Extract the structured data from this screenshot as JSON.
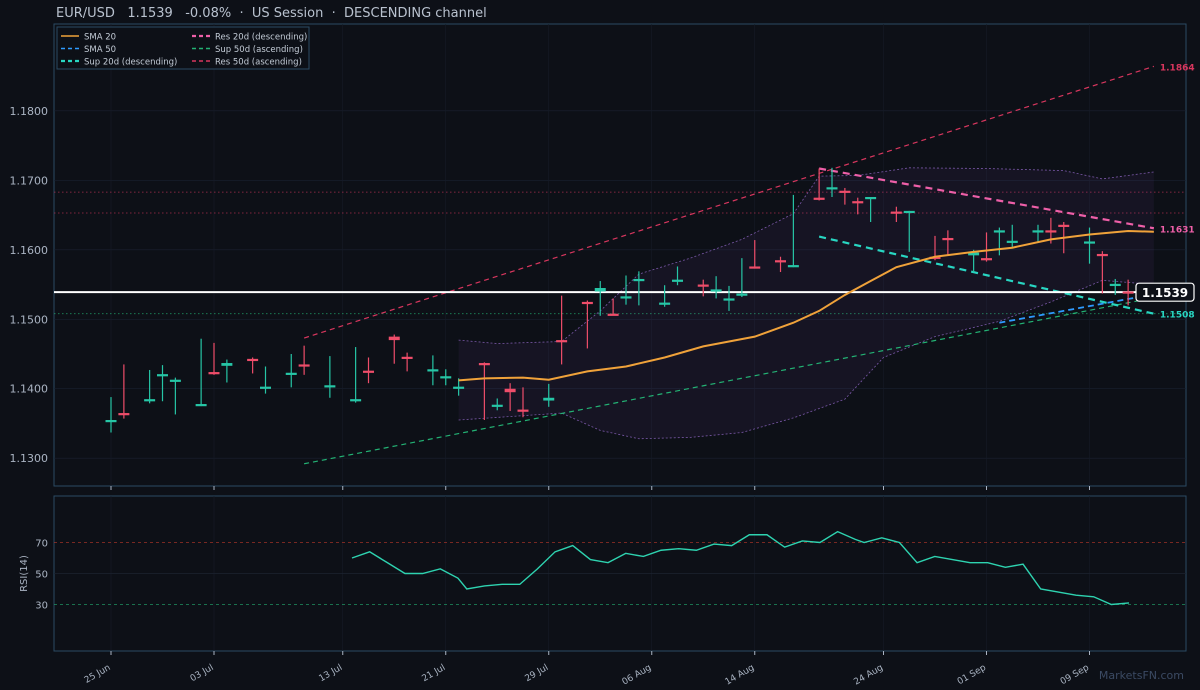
{
  "header": {
    "title": "EUR/USD   1.1539   -0.08%  ·  US Session  ·  DESCENDING channel"
  },
  "watermark": "MarketsFN.com",
  "colors": {
    "up": "#26c6a6",
    "down": "#ef4d6a",
    "sma20": "#f0a23a",
    "sma50": "#2e9bff",
    "res20": "#ee5fa8",
    "sup20": "#28d6c2",
    "res50": "#d8365e",
    "sup50": "#23b274",
    "price_line": "#ffffff",
    "rsi": "#2ed3b0",
    "bg": "#0d1017",
    "frame": "#2a4a63"
  },
  "chart_data": [
    {
      "type": "candlestick",
      "name": "price",
      "ylim": [
        1.126,
        1.1925
      ],
      "yticks": [
        1.13,
        1.14,
        1.15,
        1.16,
        1.17,
        1.18
      ],
      "ytick_labels": [
        "1.1300",
        "1.1400",
        "1.1500",
        "1.1600",
        "1.1700",
        "1.1800"
      ],
      "xticks": [
        {
          "date": "2025-06-25",
          "label": "25 Jun"
        },
        {
          "date": "2025-07-03",
          "label": "03 Jul"
        },
        {
          "date": "2025-07-13",
          "label": "13 Jul"
        },
        {
          "date": "2025-07-21",
          "label": "21 Jul"
        },
        {
          "date": "2025-07-29",
          "label": "29 Jul"
        },
        {
          "date": "2025-08-06",
          "label": "06 Aug"
        },
        {
          "date": "2025-08-14",
          "label": "14 Aug"
        },
        {
          "date": "2025-08-24",
          "label": "24 Aug"
        },
        {
          "date": "2025-09-01",
          "label": "01 Sep"
        },
        {
          "date": "2025-09-09",
          "label": "09 Sep"
        }
      ],
      "candles": [
        {
          "date": "2025-06-25",
          "o": 1.1352,
          "h": 1.1388,
          "l": 1.1337,
          "c": 1.1355
        },
        {
          "date": "2025-06-26",
          "o": 1.1365,
          "h": 1.1435,
          "l": 1.1357,
          "c": 1.1362
        },
        {
          "date": "2025-06-28",
          "o": 1.1383,
          "h": 1.1427,
          "l": 1.1379,
          "c": 1.1385
        },
        {
          "date": "2025-06-29",
          "o": 1.1418,
          "h": 1.1434,
          "l": 1.1382,
          "c": 1.1421
        },
        {
          "date": "2025-06-30",
          "o": 1.141,
          "h": 1.1416,
          "l": 1.1363,
          "c": 1.1413
        },
        {
          "date": "2025-07-02",
          "o": 1.1376,
          "h": 1.1472,
          "l": 1.1375,
          "c": 1.1378
        },
        {
          "date": "2025-07-03",
          "o": 1.1424,
          "h": 1.1466,
          "l": 1.142,
          "c": 1.1422
        },
        {
          "date": "2025-07-04",
          "o": 1.1433,
          "h": 1.1442,
          "l": 1.1409,
          "c": 1.1437
        },
        {
          "date": "2025-07-06",
          "o": 1.1443,
          "h": 1.1445,
          "l": 1.1422,
          "c": 1.144
        },
        {
          "date": "2025-07-07",
          "o": 1.14,
          "h": 1.1432,
          "l": 1.1393,
          "c": 1.1403
        },
        {
          "date": "2025-07-09",
          "o": 1.142,
          "h": 1.145,
          "l": 1.1402,
          "c": 1.1423
        },
        {
          "date": "2025-07-10",
          "o": 1.1435,
          "h": 1.1462,
          "l": 1.142,
          "c": 1.1432
        },
        {
          "date": "2025-07-12",
          "o": 1.1402,
          "h": 1.1447,
          "l": 1.1387,
          "c": 1.1405
        },
        {
          "date": "2025-07-14",
          "o": 1.1382,
          "h": 1.146,
          "l": 1.138,
          "c": 1.1385
        },
        {
          "date": "2025-07-15",
          "o": 1.1426,
          "h": 1.1445,
          "l": 1.1408,
          "c": 1.1423
        },
        {
          "date": "2025-07-17",
          "o": 1.1475,
          "h": 1.1478,
          "l": 1.1436,
          "c": 1.147
        },
        {
          "date": "2025-07-18",
          "o": 1.1446,
          "h": 1.1452,
          "l": 1.1425,
          "c": 1.1444
        },
        {
          "date": "2025-07-20",
          "o": 1.1425,
          "h": 1.1448,
          "l": 1.1405,
          "c": 1.1428
        },
        {
          "date": "2025-07-21",
          "o": 1.1415,
          "h": 1.1428,
          "l": 1.1405,
          "c": 1.1418
        },
        {
          "date": "2025-07-22",
          "o": 1.14,
          "h": 1.1415,
          "l": 1.139,
          "c": 1.1403
        },
        {
          "date": "2025-07-24",
          "o": 1.1437,
          "h": 1.1438,
          "l": 1.1355,
          "c": 1.1436
        },
        {
          "date": "2025-07-25",
          "o": 1.1375,
          "h": 1.1386,
          "l": 1.1369,
          "c": 1.1377
        },
        {
          "date": "2025-07-26",
          "o": 1.14,
          "h": 1.1408,
          "l": 1.1368,
          "c": 1.1395
        },
        {
          "date": "2025-07-27",
          "o": 1.137,
          "h": 1.1402,
          "l": 1.1359,
          "c": 1.1368
        },
        {
          "date": "2025-07-29",
          "o": 1.1383,
          "h": 1.1407,
          "l": 1.1374,
          "c": 1.1387
        },
        {
          "date": "2025-07-30",
          "o": 1.147,
          "h": 1.1534,
          "l": 1.1435,
          "c": 1.1468
        },
        {
          "date": "2025-08-01",
          "o": 1.1525,
          "h": 1.1527,
          "l": 1.1458,
          "c": 1.1523
        },
        {
          "date": "2025-08-02",
          "o": 1.154,
          "h": 1.1555,
          "l": 1.1505,
          "c": 1.1545
        },
        {
          "date": "2025-08-03",
          "o": 1.1508,
          "h": 1.153,
          "l": 1.1506,
          "c": 1.1506
        },
        {
          "date": "2025-08-04",
          "o": 1.153,
          "h": 1.1563,
          "l": 1.1521,
          "c": 1.1533
        },
        {
          "date": "2025-08-05",
          "o": 1.1556,
          "h": 1.1569,
          "l": 1.152,
          "c": 1.1558
        },
        {
          "date": "2025-08-07",
          "o": 1.1521,
          "h": 1.1549,
          "l": 1.1518,
          "c": 1.1524
        },
        {
          "date": "2025-08-08",
          "o": 1.1555,
          "h": 1.1576,
          "l": 1.1549,
          "c": 1.1557
        },
        {
          "date": "2025-08-10",
          "o": 1.155,
          "h": 1.1557,
          "l": 1.1533,
          "c": 1.1547
        },
        {
          "date": "2025-08-11",
          "o": 1.154,
          "h": 1.1562,
          "l": 1.153,
          "c": 1.1543
        },
        {
          "date": "2025-08-12",
          "o": 1.1527,
          "h": 1.1548,
          "l": 1.1512,
          "c": 1.153
        },
        {
          "date": "2025-08-13",
          "o": 1.1535,
          "h": 1.1588,
          "l": 1.1532,
          "c": 1.1537
        },
        {
          "date": "2025-08-14",
          "o": 1.1576,
          "h": 1.1614,
          "l": 1.1573,
          "c": 1.1574
        },
        {
          "date": "2025-08-16",
          "o": 1.1585,
          "h": 1.159,
          "l": 1.1568,
          "c": 1.1583
        },
        {
          "date": "2025-08-17",
          "o": 1.1575,
          "h": 1.1679,
          "l": 1.1575,
          "c": 1.1578
        },
        {
          "date": "2025-08-19",
          "o": 1.1675,
          "h": 1.1717,
          "l": 1.1671,
          "c": 1.1673
        },
        {
          "date": "2025-08-20",
          "o": 1.1688,
          "h": 1.1718,
          "l": 1.1676,
          "c": 1.169
        },
        {
          "date": "2025-08-21",
          "o": 1.1685,
          "h": 1.1689,
          "l": 1.1665,
          "c": 1.1682
        },
        {
          "date": "2025-08-22",
          "o": 1.167,
          "h": 1.1675,
          "l": 1.1651,
          "c": 1.1667
        },
        {
          "date": "2025-08-23",
          "o": 1.1674,
          "h": 1.1676,
          "l": 1.164,
          "c": 1.1676
        },
        {
          "date": "2025-08-25",
          "o": 1.1655,
          "h": 1.1662,
          "l": 1.164,
          "c": 1.1652
        },
        {
          "date": "2025-08-26",
          "o": 1.1655,
          "h": 1.1656,
          "l": 1.1597,
          "c": 1.1656
        },
        {
          "date": "2025-08-28",
          "o": 1.159,
          "h": 1.162,
          "l": 1.1585,
          "c": 1.1588
        },
        {
          "date": "2025-08-29",
          "o": 1.1617,
          "h": 1.1628,
          "l": 1.1592,
          "c": 1.1615
        },
        {
          "date": "2025-08-31",
          "o": 1.1592,
          "h": 1.16,
          "l": 1.1568,
          "c": 1.1596
        },
        {
          "date": "2025-09-01",
          "o": 1.1588,
          "h": 1.1625,
          "l": 1.1583,
          "c": 1.1586
        },
        {
          "date": "2025-09-02",
          "o": 1.1627,
          "h": 1.1632,
          "l": 1.1592,
          "c": 1.1628
        },
        {
          "date": "2025-09-03",
          "o": 1.1612,
          "h": 1.1636,
          "l": 1.1602,
          "c": 1.1613
        },
        {
          "date": "2025-09-05",
          "o": 1.1625,
          "h": 1.1636,
          "l": 1.161,
          "c": 1.1628
        },
        {
          "date": "2025-09-06",
          "o": 1.1628,
          "h": 1.1646,
          "l": 1.1609,
          "c": 1.1626
        },
        {
          "date": "2025-09-07",
          "o": 1.1636,
          "h": 1.164,
          "l": 1.1595,
          "c": 1.1634
        },
        {
          "date": "2025-09-09",
          "o": 1.161,
          "h": 1.1632,
          "l": 1.158,
          "c": 1.1612
        },
        {
          "date": "2025-09-10",
          "o": 1.1594,
          "h": 1.1598,
          "l": 1.1537,
          "c": 1.1593
        },
        {
          "date": "2025-09-11",
          "o": 1.1548,
          "h": 1.1558,
          "l": 1.1535,
          "c": 1.1551
        },
        {
          "date": "2025-09-12",
          "o": 1.154,
          "h": 1.1557,
          "l": 1.152,
          "c": 1.1539
        }
      ],
      "overlays": {
        "sma20": [
          [
            "2025-07-22",
            1.1412
          ],
          [
            "2025-07-24",
            1.1415
          ],
          [
            "2025-07-27",
            1.1416
          ],
          [
            "2025-07-29",
            1.1413
          ],
          [
            "2025-08-01",
            1.1425
          ],
          [
            "2025-08-04",
            1.1432
          ],
          [
            "2025-08-07",
            1.1445
          ],
          [
            "2025-08-10",
            1.1461
          ],
          [
            "2025-08-12",
            1.1468
          ],
          [
            "2025-08-14",
            1.1475
          ],
          [
            "2025-08-17",
            1.1495
          ],
          [
            "2025-08-19",
            1.1512
          ],
          [
            "2025-08-21",
            1.1535
          ],
          [
            "2025-08-23",
            1.1555
          ],
          [
            "2025-08-25",
            1.1575
          ],
          [
            "2025-08-28",
            1.159
          ],
          [
            "2025-08-31",
            1.1597
          ],
          [
            "2025-09-03",
            1.1603
          ],
          [
            "2025-09-06",
            1.1615
          ],
          [
            "2025-09-09",
            1.1622
          ],
          [
            "2025-09-12",
            1.1627
          ],
          [
            "2025-09-14",
            1.1626
          ]
        ],
        "sma50": [
          [
            "2025-09-02",
            1.1495
          ],
          [
            "2025-09-14",
            1.1536
          ]
        ],
        "res20": [
          [
            "2025-08-19",
            1.1717
          ],
          [
            "2025-09-14",
            1.1631
          ]
        ],
        "sup20": [
          [
            "2025-08-19",
            1.1619
          ],
          [
            "2025-09-14",
            1.1508
          ]
        ],
        "sup50": [
          [
            "2025-07-10",
            1.1292
          ],
          [
            "2025-09-14",
            1.1531
          ]
        ],
        "res50": [
          [
            "2025-07-10",
            1.1473
          ],
          [
            "2025-09-14",
            1.1864
          ]
        ],
        "bb_upper": [
          [
            "2025-07-22",
            1.147
          ],
          [
            "2025-07-25",
            1.1465
          ],
          [
            "2025-07-30",
            1.1468
          ],
          [
            "2025-08-02",
            1.1512
          ],
          [
            "2025-08-05",
            1.1565
          ],
          [
            "2025-08-09",
            1.1588
          ],
          [
            "2025-08-13",
            1.1615
          ],
          [
            "2025-08-17",
            1.1652
          ],
          [
            "2025-08-19",
            1.1706
          ],
          [
            "2025-08-22",
            1.1707
          ],
          [
            "2025-08-26",
            1.1718
          ],
          [
            "2025-09-01",
            1.1717
          ],
          [
            "2025-09-07",
            1.1714
          ],
          [
            "2025-09-10",
            1.1702
          ],
          [
            "2025-09-14",
            1.1712
          ]
        ],
        "bb_lower": [
          [
            "2025-07-22",
            1.1355
          ],
          [
            "2025-07-26",
            1.136
          ],
          [
            "2025-07-30",
            1.1365
          ],
          [
            "2025-08-02",
            1.134
          ],
          [
            "2025-08-05",
            1.1328
          ],
          [
            "2025-08-09",
            1.133
          ],
          [
            "2025-08-13",
            1.1337
          ],
          [
            "2025-08-17",
            1.1358
          ],
          [
            "2025-08-21",
            1.1385
          ],
          [
            "2025-08-24",
            1.1445
          ],
          [
            "2025-08-28",
            1.1475
          ],
          [
            "2025-09-02",
            1.1497
          ],
          [
            "2025-09-06",
            1.1525
          ],
          [
            "2025-09-10",
            1.1556
          ],
          [
            "2025-09-14",
            1.155
          ]
        ],
        "hlines": [
          {
            "y": 1.1683,
            "color": "#d8365e"
          },
          {
            "y": 1.1653,
            "color": "#d8365e"
          },
          {
            "y": 1.1508,
            "color": "#23b274"
          }
        ],
        "price_line": 1.1539
      },
      "end_labels": {
        "res50": "1.1864",
        "res20": "1.1631",
        "sup20": "1.1508",
        "price": "1.1539"
      },
      "legend": {
        "position": "top-left",
        "items": [
          {
            "label": "SMA 20",
            "key": "sma20",
            "dash": "solid"
          },
          {
            "label": "SMA 50",
            "key": "sma50",
            "dash": "dashed"
          },
          {
            "label": "Sup 20d (descending)",
            "key": "sup20",
            "dash": "dashed"
          },
          {
            "label": "Res 20d (descending)",
            "key": "res20",
            "dash": "dashed"
          },
          {
            "label": "Sup 50d (ascending)",
            "key": "sup50",
            "dash": "dashed"
          },
          {
            "label": "Res 50d (ascending)",
            "key": "res50",
            "dash": "dashed"
          }
        ]
      }
    },
    {
      "type": "line",
      "name": "rsi",
      "ylabel": "RSI(14)",
      "ylim": [
        0,
        100
      ],
      "yticks": [
        30,
        50,
        70
      ],
      "ytick_labels": [
        "30",
        "50",
        "70"
      ],
      "levels": [
        70,
        30
      ],
      "series": [
        {
          "values": [
            [
              "2025-07-15",
              60
            ],
            [
              "2025-07-17",
              64
            ],
            [
              "2025-07-19",
              57
            ],
            [
              "2025-07-21",
              50
            ],
            [
              "2025-07-23",
              50
            ],
            [
              "2025-07-25",
              53
            ],
            [
              "2025-07-27",
              47
            ],
            [
              "2025-07-28",
              40
            ],
            [
              "2025-07-30",
              42
            ],
            [
              "2025-08-01",
              43
            ],
            [
              "2025-08-03",
              43
            ],
            [
              "2025-08-05",
              53
            ],
            [
              "2025-08-07",
              64
            ],
            [
              "2025-08-09",
              68
            ],
            [
              "2025-08-11",
              59
            ],
            [
              "2025-08-13",
              57
            ],
            [
              "2025-08-15",
              63
            ],
            [
              "2025-08-17",
              61
            ],
            [
              "2025-08-19",
              65
            ],
            [
              "2025-08-21",
              66
            ],
            [
              "2025-08-23",
              65
            ],
            [
              "2025-08-25",
              69
            ],
            [
              "2025-08-27",
              68
            ],
            [
              "2025-08-29",
              75
            ],
            [
              "2025-08-31",
              75
            ],
            [
              "2025-09-02",
              67
            ],
            [
              "2025-09-04",
              71
            ],
            [
              "2025-09-06",
              70
            ],
            [
              "2025-09-08",
              77
            ],
            [
              "2025-09-10",
              72
            ],
            [
              "2025-09-11",
              70
            ],
            [
              "2025-09-13",
              73
            ],
            [
              "2025-09-15",
              70
            ],
            [
              "2025-09-17",
              57
            ],
            [
              "2025-09-19",
              61
            ],
            [
              "2025-09-21",
              59
            ],
            [
              "2025-09-23",
              57
            ],
            [
              "2025-09-25",
              57
            ],
            [
              "2025-09-27",
              54
            ],
            [
              "2025-09-29",
              56
            ],
            [
              "2025-10-01",
              40
            ],
            [
              "2025-10-03",
              38
            ],
            [
              "2025-10-05",
              36
            ],
            [
              "2025-10-07",
              35
            ],
            [
              "2025-10-09",
              30
            ],
            [
              "2025-10-11",
              31
            ]
          ]
        }
      ]
    }
  ]
}
